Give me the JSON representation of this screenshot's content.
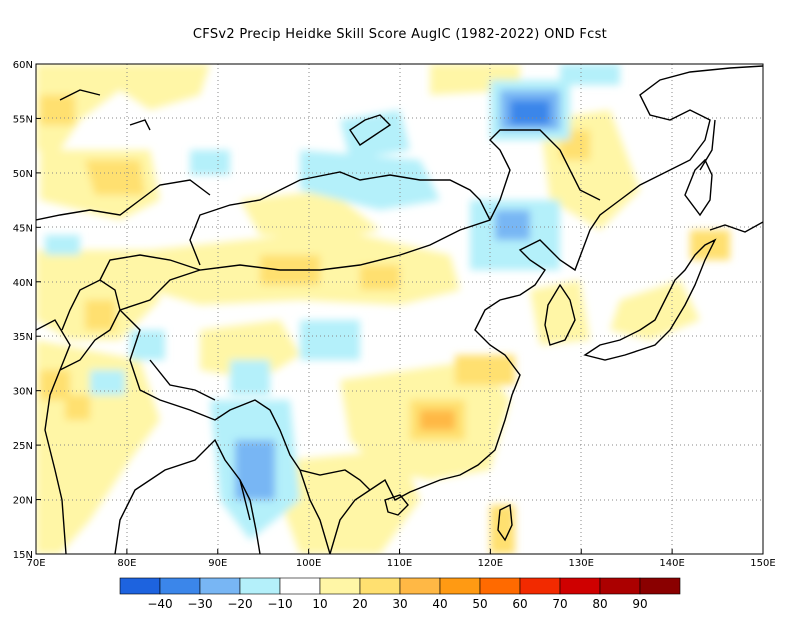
{
  "title": "CFSv2 Precip Heidke Skill Score AugIC (1982-2022) OND Fcst",
  "map": {
    "lon_range": [
      70,
      150
    ],
    "lat_range": [
      15,
      60
    ],
    "lon_ticks": [
      "70E",
      "80E",
      "90E",
      "100E",
      "110E",
      "120E",
      "130E",
      "140E",
      "150E"
    ],
    "lat_ticks": [
      "60N",
      "55N",
      "50N",
      "45N",
      "40N",
      "35N",
      "30N",
      "25N",
      "20N",
      "15N"
    ],
    "grid": "dotted",
    "coastline_icon": "coastline-outline",
    "regions": [
      {
        "name": "north-india-kazakh-warm",
        "level": 20
      },
      {
        "name": "tarim-basin-warm",
        "level": 30
      },
      {
        "name": "south-china-warm",
        "level": 40
      },
      {
        "name": "east-china-warm",
        "level": 30
      },
      {
        "name": "northeast-china-warm",
        "level": 20
      },
      {
        "name": "amur-cool",
        "level": -30
      },
      {
        "name": "myanmar-cool",
        "level": -30
      },
      {
        "name": "siberia-cool",
        "level": -10
      }
    ]
  },
  "colorbar": {
    "colors": [
      "#1d63df",
      "#3b86ea",
      "#78b6f4",
      "#b4f0fa",
      "#ffffff",
      "#fff6a6",
      "#ffe070",
      "#ffb845",
      "#ff9a13",
      "#ff6a00",
      "#f22a00",
      "#cf0000",
      "#ab0000",
      "#8a0000"
    ],
    "labels": [
      "-40",
      "-30",
      "-20",
      "-10",
      "10",
      "20",
      "30",
      "40",
      "50",
      "60",
      "70",
      "80",
      "90"
    ]
  }
}
